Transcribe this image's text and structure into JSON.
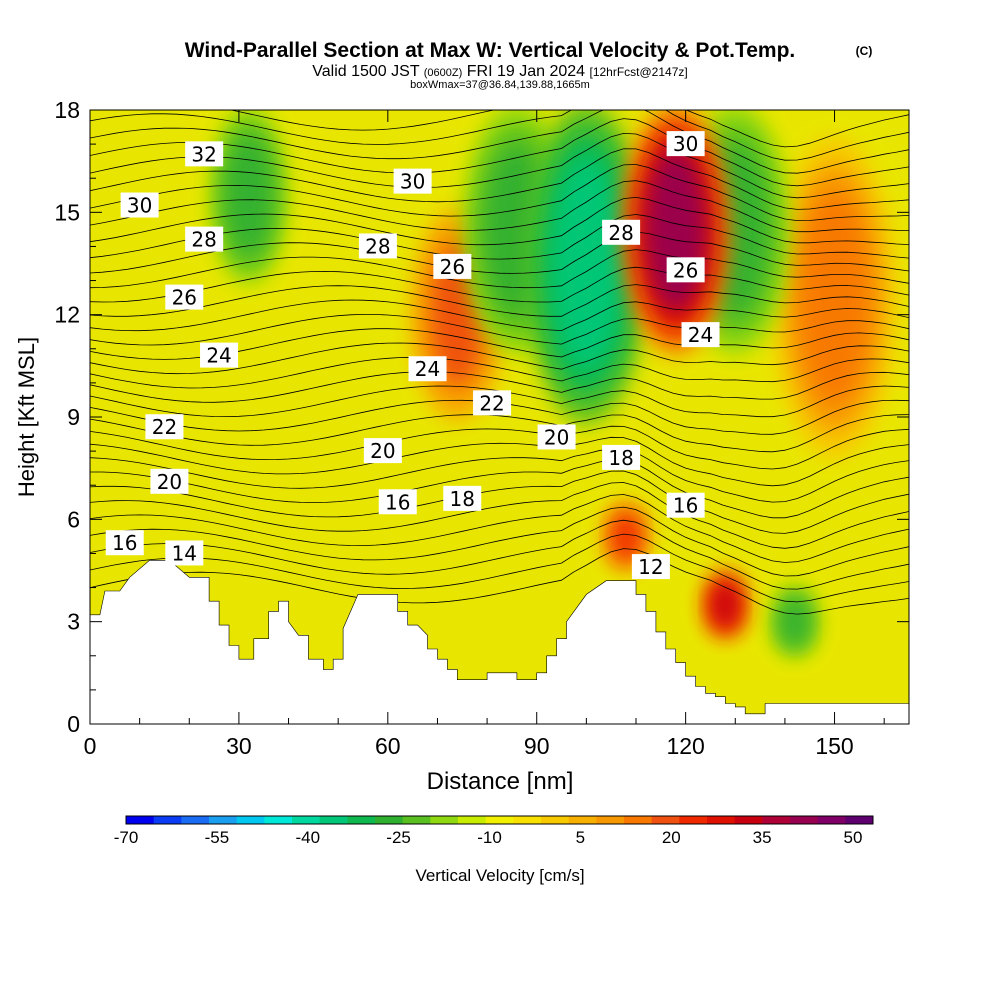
{
  "chart_data": {
    "type": "heatmap",
    "title": "Wind-Parallel Section at Max W: Vertical Velocity & Pot.Temp.",
    "title_mark": "(C)",
    "subtitle_line1_a": "Valid 1500 JST",
    "subtitle_line1_b": "(0600Z)",
    "subtitle_line1_c": "FRI 19 Jan 2024",
    "subtitle_line1_d": "[12hrFcst@2147z]",
    "subtitle_line2": "boxWmax=37@36.84,139.88,1665m",
    "xlabel": "Distance [nm]",
    "ylabel": "Height [Kft MSL]",
    "xlim": [
      0,
      165
    ],
    "ylim": [
      0,
      18
    ],
    "x_ticks": [
      0,
      30,
      60,
      90,
      120,
      150
    ],
    "y_ticks": [
      0,
      3,
      6,
      9,
      12,
      15,
      18
    ],
    "grid": false,
    "colorbar": {
      "label": "Vertical Velocity [cm/s]",
      "tick_labels": [
        "-70",
        "-55",
        "-40",
        "-25",
        "-10",
        "5",
        "20",
        "35",
        "50"
      ],
      "bins": [
        -70,
        -65,
        -60,
        -55,
        -50,
        -45,
        -40,
        -35,
        -30,
        -25,
        -20,
        -15,
        -10,
        -5,
        0,
        5,
        10,
        15,
        20,
        25,
        30,
        35,
        40,
        45,
        50,
        55,
        60
      ],
      "colors": [
        "#0000f0",
        "#0a3cf5",
        "#1a6cf5",
        "#1a9ef0",
        "#00c8f0",
        "#00e8d8",
        "#00d8a0",
        "#00c878",
        "#10b850",
        "#30b030",
        "#58c020",
        "#90d810",
        "#c8ec00",
        "#f0f000",
        "#f8e000",
        "#f8c800",
        "#f8b000",
        "#f89800",
        "#f87800",
        "#f05010",
        "#f02800",
        "#e01000",
        "#c80010",
        "#b00038",
        "#980050",
        "#800068",
        "#600070"
      ]
    },
    "terrain_profile": {
      "distance_nm": [
        0,
        2,
        3,
        6,
        8,
        12,
        16,
        20,
        24,
        24,
        26,
        26,
        28,
        28,
        30,
        30,
        33,
        33,
        36,
        36,
        38,
        38,
        40,
        40,
        42,
        44,
        44,
        47,
        47,
        49,
        49,
        51,
        51,
        54,
        58,
        60,
        62,
        62,
        64,
        64,
        66,
        68,
        68,
        70,
        70,
        72,
        72,
        74,
        74,
        76,
        76,
        78,
        78,
        80,
        80,
        86,
        86,
        88,
        88,
        90,
        90,
        92,
        92,
        94,
        94,
        96,
        96,
        100,
        104,
        106,
        108,
        110,
        110,
        112,
        112,
        114,
        114,
        116,
        116,
        118,
        118,
        120,
        120,
        122,
        122,
        124,
        124,
        126,
        126,
        128,
        128,
        130,
        130,
        132,
        132,
        134,
        134,
        136,
        136,
        140,
        140,
        145,
        150,
        155,
        160,
        165
      ],
      "height_kft": [
        3.2,
        3.2,
        3.9,
        3.9,
        4.3,
        4.8,
        4.8,
        4.3,
        4.3,
        3.6,
        3.6,
        2.9,
        2.9,
        2.3,
        2.3,
        1.9,
        1.9,
        2.5,
        2.5,
        3.3,
        3.3,
        3.6,
        3.6,
        3.0,
        2.6,
        2.6,
        1.9,
        1.9,
        1.6,
        1.6,
        1.9,
        1.9,
        2.8,
        3.8,
        3.8,
        3.8,
        3.8,
        3.3,
        3.3,
        2.9,
        2.9,
        2.6,
        2.2,
        2.2,
        1.9,
        1.9,
        1.6,
        1.6,
        1.3,
        1.3,
        1.3,
        1.3,
        1.3,
        1.3,
        1.5,
        1.5,
        1.3,
        1.3,
        1.3,
        1.3,
        1.5,
        1.5,
        2.0,
        2.0,
        2.5,
        2.5,
        3.0,
        3.8,
        4.2,
        4.2,
        4.2,
        4.2,
        3.8,
        3.8,
        3.3,
        3.3,
        2.7,
        2.7,
        2.2,
        2.2,
        1.8,
        1.8,
        1.4,
        1.4,
        1.1,
        1.1,
        0.9,
        0.9,
        0.8,
        0.8,
        0.6,
        0.6,
        0.5,
        0.5,
        0.3,
        0.3,
        0.3,
        0.3,
        0.6,
        0.6,
        0.6,
        0.6,
        0.6,
        0.6,
        0.6,
        0.6
      ]
    },
    "vertical_velocity_features": [
      {
        "x_nm": 74,
        "height_kft": [
          9,
          15
        ],
        "w_cms": 25
      },
      {
        "x_nm": 100,
        "height_kft": [
          9,
          18
        ],
        "w_cms": -35
      },
      {
        "x_nm": 108,
        "height_kft": [
          4.5,
          6.5
        ],
        "w_cms": 30
      },
      {
        "x_nm": 118,
        "height_kft": [
          11,
          18
        ],
        "w_cms": 50
      },
      {
        "x_nm": 128,
        "height_kft": [
          2.5,
          4.5
        ],
        "w_cms": 40
      },
      {
        "x_nm": 142,
        "height_kft": [
          2,
          4
        ],
        "w_cms": -25
      },
      {
        "x_nm": 150,
        "height_kft": [
          8,
          17
        ],
        "w_cms": 20
      },
      {
        "x_nm": 32,
        "height_kft": [
          13,
          18
        ],
        "w_cms": -25
      },
      {
        "x_nm": 86,
        "height_kft": [
          11,
          18
        ],
        "w_cms": -25
      },
      {
        "x_nm": 130,
        "height_kft": [
          11,
          18
        ],
        "w_cms": -25
      }
    ],
    "isentrope_labels": [
      {
        "value": "30",
        "x_nm": 10,
        "height_kft": 15.2
      },
      {
        "value": "32",
        "x_nm": 23,
        "height_kft": 16.7
      },
      {
        "value": "28",
        "x_nm": 23,
        "height_kft": 14.2
      },
      {
        "value": "26",
        "x_nm": 19,
        "height_kft": 12.5
      },
      {
        "value": "24",
        "x_nm": 26,
        "height_kft": 10.8
      },
      {
        "value": "22",
        "x_nm": 15,
        "height_kft": 8.7
      },
      {
        "value": "20",
        "x_nm": 16,
        "height_kft": 7.1
      },
      {
        "value": "16",
        "x_nm": 7,
        "height_kft": 5.3
      },
      {
        "value": "14",
        "x_nm": 19,
        "height_kft": 5.0
      },
      {
        "value": "30",
        "x_nm": 65,
        "height_kft": 15.9
      },
      {
        "value": "28",
        "x_nm": 58,
        "height_kft": 14.0
      },
      {
        "value": "26",
        "x_nm": 73,
        "height_kft": 13.4
      },
      {
        "value": "24",
        "x_nm": 68,
        "height_kft": 10.4
      },
      {
        "value": "22",
        "x_nm": 81,
        "height_kft": 9.4
      },
      {
        "value": "20",
        "x_nm": 59,
        "height_kft": 8.0
      },
      {
        "value": "20",
        "x_nm": 94,
        "height_kft": 8.4
      },
      {
        "value": "16",
        "x_nm": 62,
        "height_kft": 6.5
      },
      {
        "value": "18",
        "x_nm": 75,
        "height_kft": 6.6
      },
      {
        "value": "18",
        "x_nm": 107,
        "height_kft": 7.8
      },
      {
        "value": "16",
        "x_nm": 120,
        "height_kft": 6.4
      },
      {
        "value": "12",
        "x_nm": 113,
        "height_kft": 4.6
      },
      {
        "value": "30",
        "x_nm": 120,
        "height_kft": 17.0
      },
      {
        "value": "28",
        "x_nm": 107,
        "height_kft": 14.4
      },
      {
        "value": "26",
        "x_nm": 120,
        "height_kft": 13.3
      },
      {
        "value": "24",
        "x_nm": 123,
        "height_kft": 11.4
      }
    ]
  }
}
